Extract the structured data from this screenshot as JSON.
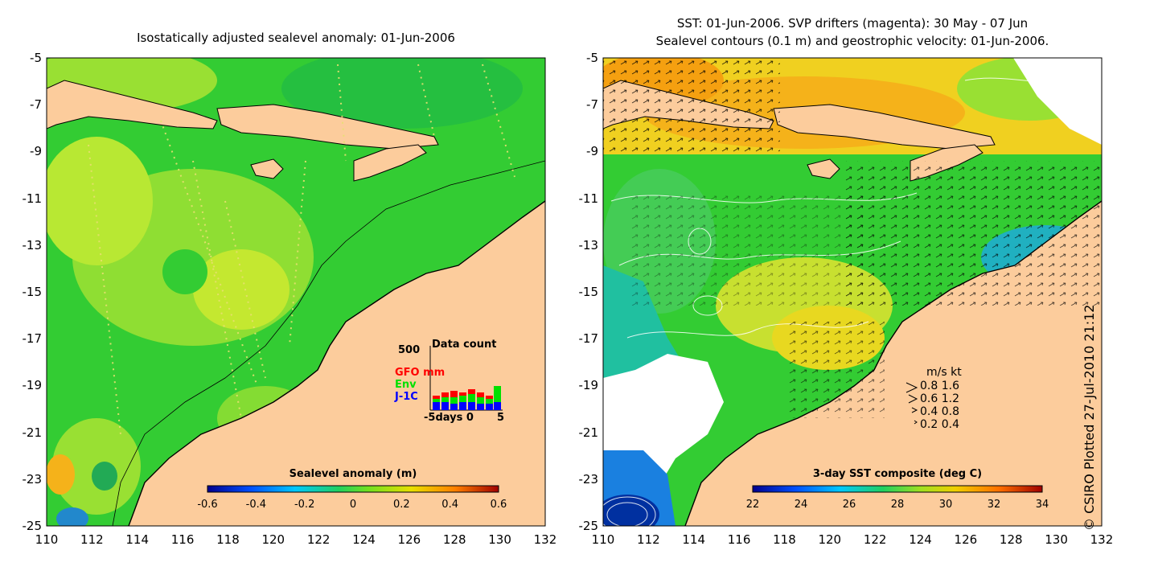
{
  "left_panel": {
    "title": "Isostatically adjusted sealevel anomaly: 01-Jun-2006",
    "colorbar_title": "Sealevel anomaly (m)",
    "colorbar_ticks": [
      "-0.6",
      "-0.4",
      "-0.2",
      "0",
      "0.2",
      "0.4",
      "0.6"
    ],
    "inset": {
      "max_label": "500",
      "title": "Data count",
      "series": [
        {
          "name": "GFO mm",
          "color": "#ff0000"
        },
        {
          "name": "Env",
          "color": "#00e000"
        },
        {
          "name": "J-1C",
          "color": "#0000ff"
        }
      ],
      "xlabel": "-5days 0",
      "xmax": "5"
    }
  },
  "right_panel": {
    "title_line1": "SST: 01-Jun-2006. SVP drifters (magenta): 30 May - 07 Jun",
    "title_line2": "Sealevel contours (0.1 m) and geostrophic velocity: 01-Jun-2006.",
    "colorbar_title": "3-day SST composite (deg C)",
    "colorbar_ticks": [
      "22",
      "24",
      "26",
      "28",
      "30",
      "32",
      "34"
    ],
    "velocity_legend": {
      "header": "m/s  kt",
      "rows": [
        "0.8  1.6",
        "0.6  1.2",
        "0.4  0.8",
        "0.2  0.4"
      ]
    }
  },
  "axes": {
    "y_ticks": [
      "-5",
      "-7",
      "-9",
      "-11",
      "-13",
      "-15",
      "-17",
      "-19",
      "-21",
      "-23",
      "-25"
    ],
    "x_ticks": [
      "110",
      "112",
      "114",
      "116",
      "118",
      "120",
      "122",
      "124",
      "126",
      "128",
      "130",
      "132"
    ]
  },
  "colors": {
    "land": "#fccc9c",
    "ocean_green": "#33cc33",
    "ocean_yellowgreen": "#99e033",
    "sst_yellow": "#f0d020",
    "sst_orange": "#f5b21a",
    "sst_blue": "#1a80e0",
    "cloud_white": "#ffffff"
  },
  "credit": "© CSIRO Plotted 27-Jul-2010 21:12"
}
